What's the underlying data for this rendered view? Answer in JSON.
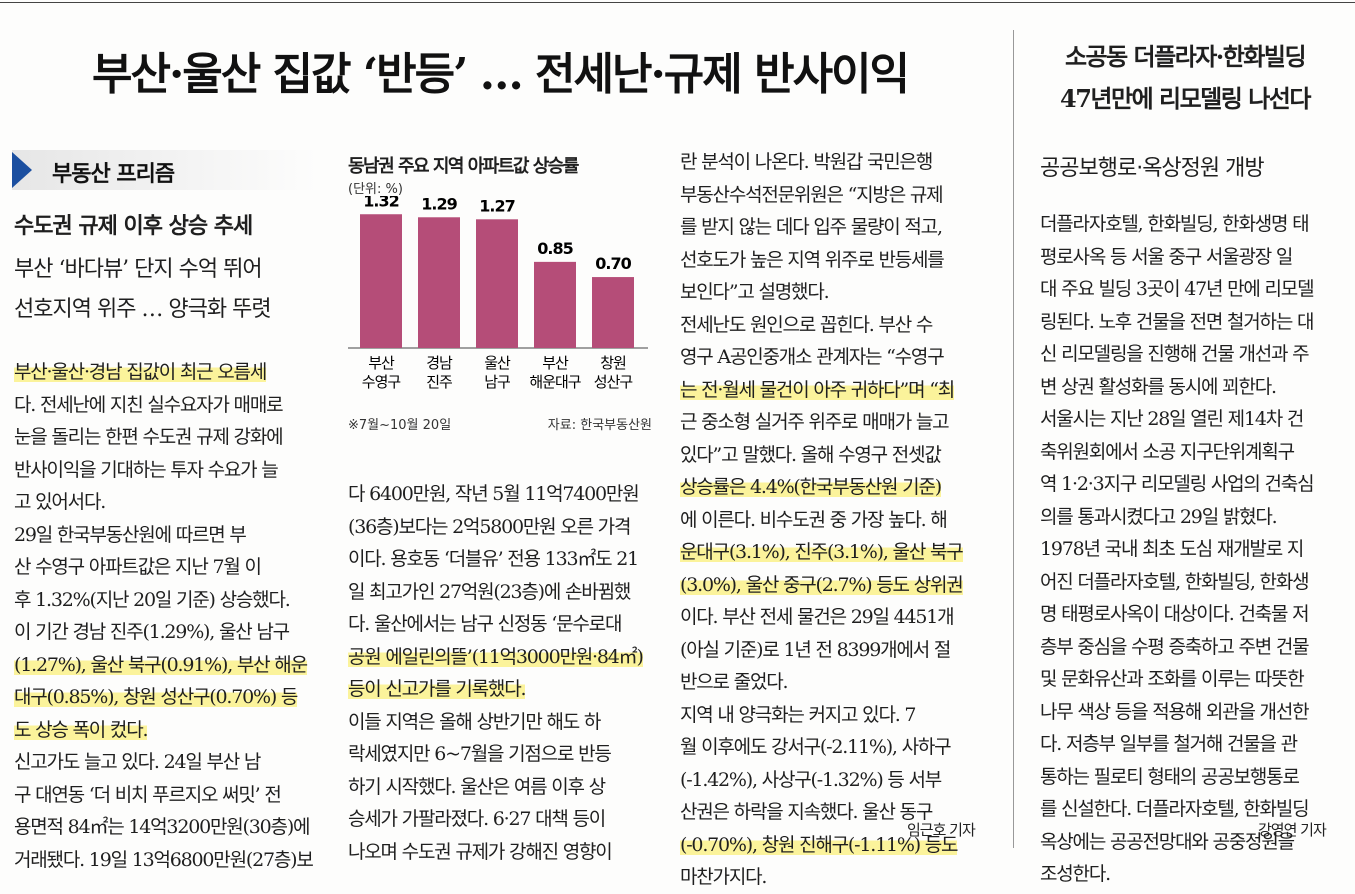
{
  "headline": "부산·울산 집값 ‘반등’ … 전세난·규제 반사이익",
  "section_tag": "부동산 프리즘",
  "subhead1": "수도권 규제 이후 상승 추세",
  "subhead2": [
    "부산 ‘바다뷰’ 단지 수억 뛰어",
    "선호지역 위주 … 양극화 뚜렷"
  ],
  "chart": {
    "title": "동남권 주요 지역 아파트값 상승률",
    "unit": "(단위: %)",
    "note": "※7월~10월 20일",
    "source": "자료: 한국부동산원"
  },
  "chart_data": {
    "type": "bar",
    "title": "동남권 주요 지역 아파트값 상승률",
    "categories": [
      [
        "부산",
        "수영구"
      ],
      [
        "경남",
        "진주"
      ],
      [
        "울산",
        "남구"
      ],
      [
        "부산",
        "해운대구"
      ],
      [
        "창원",
        "성산구"
      ]
    ],
    "values": [
      1.32,
      1.29,
      1.27,
      0.85,
      0.7
    ],
    "value_labels": [
      "1.32",
      "1.29",
      "1.27",
      "0.85",
      "0.70"
    ],
    "ylim": [
      0,
      1.5
    ],
    "unit": "%",
    "bar_color": "#b54d78",
    "grid": false
  },
  "col1": [
    {
      "t": "부산·울산·경남 집값이 최근 오름세",
      "h": true
    },
    {
      "t": "다. 전세난에 지친 실수요자가 매매로"
    },
    {
      "t": "눈을 돌리는 한편 수도권 규제 강화에"
    },
    {
      "t": "반사이익을 기대하는 투자 수요가 늘"
    },
    {
      "t": "고 있어서다."
    },
    {
      "t": "  29일 한국부동산원에 따르면 부"
    },
    {
      "t": "산 수영구 아파트값은 지난 7월 이"
    },
    {
      "t": "후 1.32%(지난 20일 기준) 상승했다."
    },
    {
      "t": "이 기간 경남 진주(1.29%), 울산 남구"
    },
    {
      "t": "(1.27%), 울산 북구(0.91%), 부산 해운",
      "h": true
    },
    {
      "t": "대구(0.85%), 창원 성산구(0.70%) 등",
      "h": true
    },
    {
      "t": "도 상승 폭이 컸다.",
      "h": true
    },
    {
      "t": "  신고가도 늘고 있다. 24일 부산 남"
    },
    {
      "t": "구 대연동 ‘더 비치 푸르지오 써밋’ 전"
    },
    {
      "t": "용면적 84㎡는 14억3200만원(30층)에"
    },
    {
      "t": "거래됐다. 19일 13억6800만원(27층)보"
    }
  ],
  "col2": [
    {
      "t": "다 6400만원, 작년 5월 11억7400만원"
    },
    {
      "t": "(36층)보다는 2억5800만원 오른 가격"
    },
    {
      "t": "이다. 용호동 ‘더블유’ 전용 133㎡도 21"
    },
    {
      "t": "일 최고가인 27억원(23층)에 손바뀜했"
    },
    {
      "t": "다. 울산에서는 남구 신정동 ‘문수로대"
    },
    {
      "t": "공원 에일린의뜰’(11억3000만원·84㎡)",
      "h": true
    },
    {
      "t": "등이 신고가를 기록했다.",
      "h": true
    },
    {
      "t": "  이들 지역은 올해 상반기만 해도 하"
    },
    {
      "t": "락세였지만 6~7월을 기점으로 반등"
    },
    {
      "t": "하기 시작했다. 울산은 여름 이후 상"
    },
    {
      "t": "승세가 가팔라졌다. 6·27 대책 등이"
    },
    {
      "t": "나오며 수도권 규제가 강해진 영향이"
    }
  ],
  "col3": [
    {
      "t": "란 분석이 나온다. 박원갑 국민은행"
    },
    {
      "t": "부동산수석전문위원은 “지방은 규제"
    },
    {
      "t": "를 받지 않는 데다 입주 물량이 적고,"
    },
    {
      "t": "선호도가 높은 지역 위주로 반등세를"
    },
    {
      "t": "보인다”고 설명했다."
    },
    {
      "t": "  전세난도 원인으로 꼽힌다. 부산 수"
    },
    {
      "t": "영구 A공인중개소 관계자는 “수영구"
    },
    {
      "t": "는 전·월세 물건이 아주 귀하다”며 “최",
      "h": true
    },
    {
      "t": "근 중소형 실거주 위주로 매매가 늘고"
    },
    {
      "t": "있다”고 말했다. 올해 수영구 전셋값"
    },
    {
      "t": "상승률은 4.4%(한국부동산원 기준)",
      "h": true
    },
    {
      "t": "에 이른다. 비수도권 중 가장 높다. 해"
    },
    {
      "t": "운대구(3.1%), 진주(3.1%), 울산 북구",
      "h": true
    },
    {
      "t": "(3.0%), 울산 중구(2.7%) 등도 상위권",
      "h": true
    },
    {
      "t": "이다. 부산 전세 물건은 29일 4451개"
    },
    {
      "t": "(아실 기준)로 1년 전 8399개에서 절"
    },
    {
      "t": "반으로 줄었다."
    },
    {
      "t": "  지역 내 양극화는 커지고 있다. 7"
    },
    {
      "t": "월 이후에도 강서구(-2.11%), 사하구"
    },
    {
      "t": "(-1.42%), 사상구(-1.32%) 등 서부"
    },
    {
      "t": "산권은 하락을 지속했다. 울산 동구"
    },
    {
      "t": "(-0.70%), 창원 진해구(-1.11%) 등도",
      "h": true
    },
    {
      "t": "마찬가지다."
    }
  ],
  "byline1": "임근호 기자",
  "right": {
    "title": [
      "소공동 더플라자·한화빌딩",
      "47년만에 리모델링 나선다"
    ],
    "subtitle": "공공보행로·옥상정원 개방",
    "body": [
      {
        "t": "더플라자호텔, 한화빌딩, 한화생명 태"
      },
      {
        "t": "평로사옥 등 서울 중구 서울광장 일"
      },
      {
        "t": "대 주요 빌딩 3곳이 47년 만에 리모델"
      },
      {
        "t": "링된다. 노후 건물을 전면 철거하는 대"
      },
      {
        "t": "신 리모델링을 진행해 건물 개선과 주"
      },
      {
        "t": "변 상권 활성화를 동시에 꾀한다."
      },
      {
        "t": "  서울시는 지난 28일 열린 제14차 건"
      },
      {
        "t": "축위원회에서 소공 지구단위계획구"
      },
      {
        "t": "역 1·2·3지구 리모델링 사업의 건축심"
      },
      {
        "t": "의를 통과시켰다고 29일 밝혔다."
      },
      {
        "t": "  1978년 국내 최초 도심 재개발로 지"
      },
      {
        "t": "어진 더플라자호텔, 한화빌딩, 한화생"
      },
      {
        "t": "명 태평로사옥이 대상이다. 건축물 저"
      },
      {
        "t": "층부 중심을 수평 증축하고 주변 건물"
      },
      {
        "t": "및 문화유산과 조화를 이루는 따뜻한"
      },
      {
        "t": "나무 색상 등을 적용해 외관을 개선한"
      },
      {
        "t": "다. 저층부 일부를 철거해 건물을 관"
      },
      {
        "t": "통하는 필로티 형태의 공공보행통로"
      },
      {
        "t": "를 신설한다. 더플라자호텔, 한화빌딩"
      },
      {
        "t": "옥상에는 공공전망대와 공중정원을"
      },
      {
        "t": "조성한다."
      }
    ],
    "byline": "강영연 기자"
  }
}
